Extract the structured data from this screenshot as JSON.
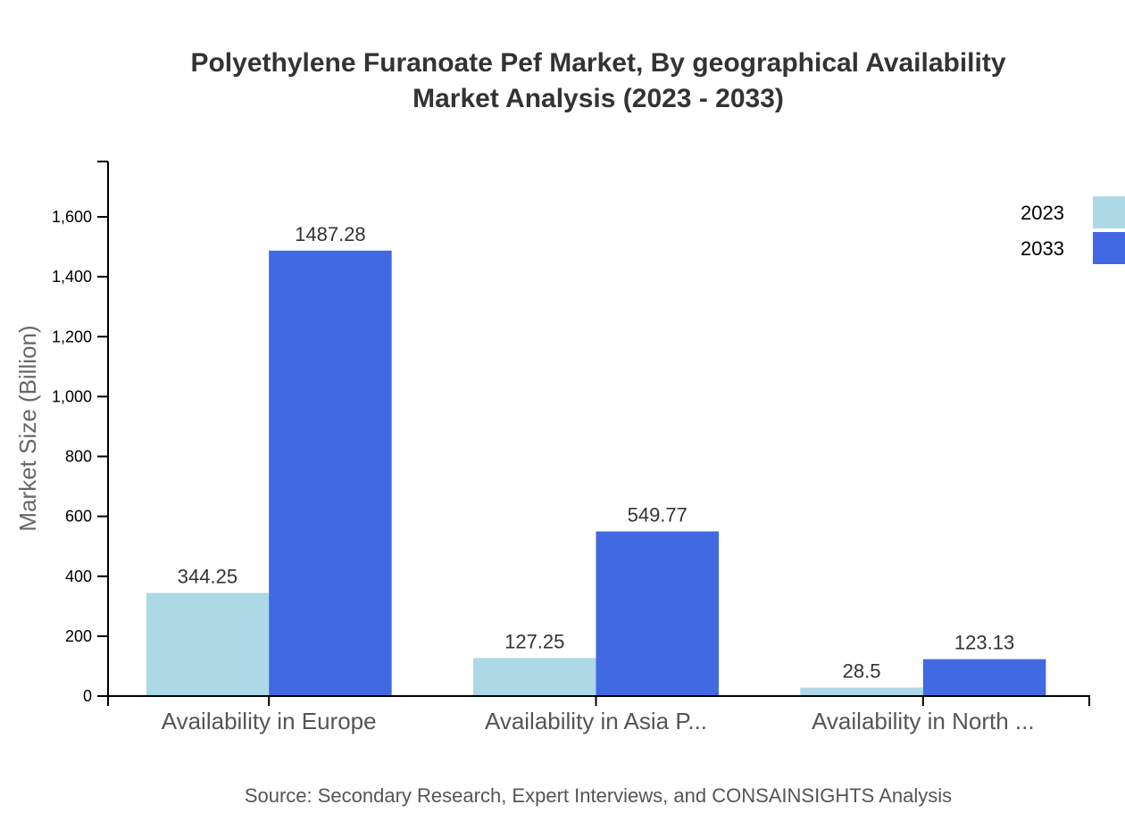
{
  "chart_data": {
    "type": "bar",
    "title": "Polyethylene Furanoate Pef Market, By geographical Availability Market Analysis (2023 - 2033)",
    "title_lines": [
      "Polyethylene Furanoate Pef Market, By geographical Availability",
      "Market Analysis (2023 - 2033)"
    ],
    "xlabel": "",
    "ylabel": "Market Size (Billion)",
    "categories": [
      "Availability in Europe",
      "Availability in Asia P...",
      "Availability in North ..."
    ],
    "series": [
      {
        "name": "2023",
        "color": "#add8e6",
        "values": [
          344.25,
          127.25,
          28.5
        ]
      },
      {
        "name": "2033",
        "color": "#4169e1",
        "values": [
          1487.28,
          549.77,
          123.13
        ]
      }
    ],
    "value_labels": [
      [
        "344.25",
        "127.25",
        "28.5"
      ],
      [
        "1487.28",
        "549.77",
        "123.13"
      ]
    ],
    "y_ticks": [
      0,
      200,
      400,
      600,
      800,
      1000,
      1200,
      1400,
      1600
    ],
    "y_tick_labels": [
      "0",
      "200",
      "400",
      "600",
      "800",
      "1,000",
      "1,200",
      "1,400",
      "1,600"
    ],
    "ylim": [
      0,
      1785
    ],
    "grid": false,
    "legend_position": "top-right"
  },
  "source_text": "Source: Secondary Research, Expert Interviews, and CONSAINSIGHTS Analysis"
}
